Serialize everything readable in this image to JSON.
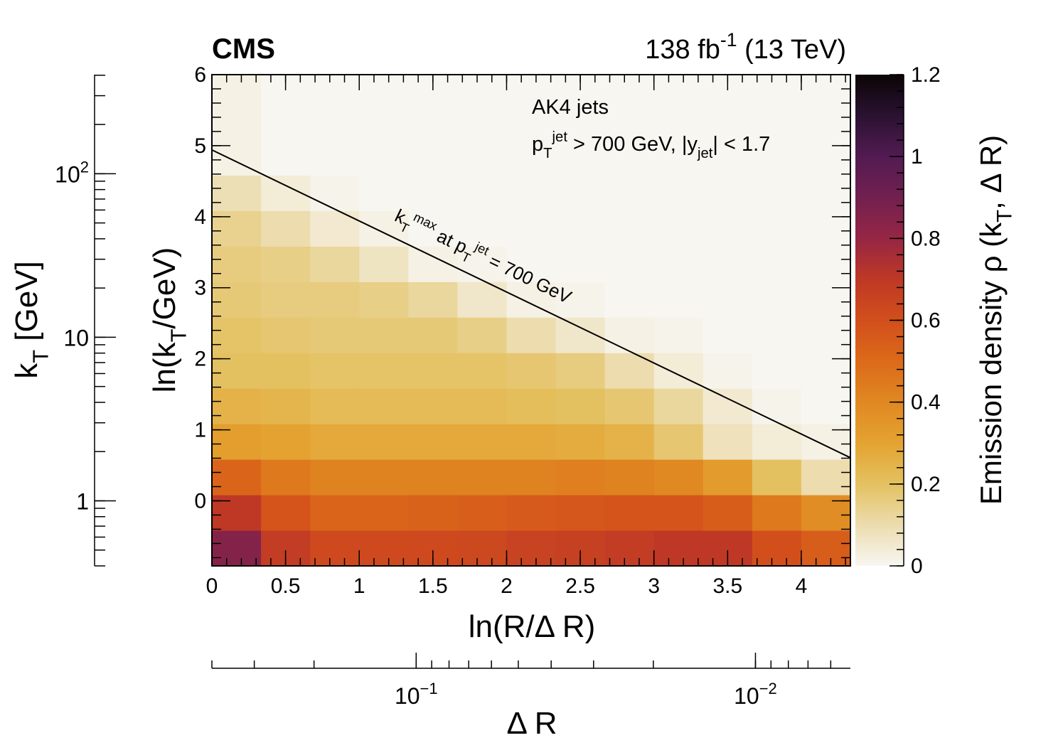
{
  "chart_data": {
    "type": "heatmap",
    "title": "CMS",
    "lumi_label": [
      {
        "text": "138 fb"
      },
      {
        "text": "-1",
        "sup": true
      },
      {
        "text": " (13 TeV)"
      }
    ],
    "annotations": [
      [
        {
          "text": "AK4 jets"
        }
      ],
      [
        {
          "text": "p"
        },
        {
          "text": "T",
          "sub": true
        },
        {
          "text": "jet",
          "sup": true
        },
        {
          "text": " > 700 GeV, |y"
        },
        {
          "text": "jet",
          "sub": true
        },
        {
          "text": "| < 1.7"
        }
      ]
    ],
    "line": {
      "label": [
        {
          "text": "k"
        },
        {
          "text": "T",
          "sub": true
        },
        {
          "text": "max",
          "sup": true
        },
        {
          "text": " at p"
        },
        {
          "text": "T",
          "sub": true
        },
        {
          "text": "jet",
          "sup": true
        },
        {
          "text": " = 700 GeV"
        }
      ],
      "x": [
        0,
        4.3333
      ],
      "y": [
        4.94,
        0.607
      ],
      "color": "#000000"
    },
    "xlabel": [
      {
        "text": "ln(R/Δ R)"
      }
    ],
    "ylabel": [
      {
        "text": "ln(k"
      },
      {
        "text": "T",
        "sub": true
      },
      {
        "text": "/GeV)"
      }
    ],
    "xlim": [
      0,
      4.3333
    ],
    "xticks": [
      0,
      0.5,
      1,
      1.5,
      2,
      2.5,
      3,
      3.5,
      4
    ],
    "ylim": [
      -0.916,
      6
    ],
    "yticks": [
      0,
      1,
      2,
      3,
      4,
      5,
      6
    ],
    "xbins": [
      0,
      0.3333,
      0.6667,
      1,
      1.3333,
      1.6667,
      2,
      2.3333,
      2.6667,
      3,
      3.3333,
      3.6667,
      4,
      4.3333
    ],
    "ybins": [
      -0.916,
      -0.416,
      0.084,
      0.584,
      1.084,
      1.584,
      2.084,
      2.584,
      3.084,
      3.584,
      4.084,
      4.584,
      5.084,
      5.584,
      6.084
    ],
    "z": [
      [
        0.85,
        0.68,
        0.62,
        0.62,
        0.62,
        0.63,
        0.65,
        0.66,
        0.68,
        0.7,
        0.7,
        0.6,
        0.55
      ],
      [
        0.7,
        0.58,
        0.52,
        0.52,
        0.53,
        0.54,
        0.56,
        0.57,
        0.58,
        0.58,
        0.55,
        0.45,
        0.38
      ],
      [
        0.52,
        0.45,
        0.42,
        0.42,
        0.42,
        0.42,
        0.42,
        0.43,
        0.42,
        0.4,
        0.33,
        0.2,
        0.1
      ],
      [
        0.32,
        0.3,
        0.28,
        0.28,
        0.28,
        0.28,
        0.28,
        0.27,
        0.25,
        0.18,
        0.08,
        0.04,
        0.02
      ],
      [
        0.25,
        0.24,
        0.22,
        0.22,
        0.22,
        0.22,
        0.21,
        0.2,
        0.18,
        0.12,
        0.05,
        0.01,
        0
      ],
      [
        0.2,
        0.2,
        0.19,
        0.19,
        0.19,
        0.19,
        0.18,
        0.16,
        0.1,
        0.04,
        0.01,
        0,
        0
      ],
      [
        0.19,
        0.18,
        0.17,
        0.17,
        0.17,
        0.15,
        0.1,
        0.06,
        0.02,
        0.01,
        0,
        0,
        0
      ],
      [
        0.17,
        0.16,
        0.16,
        0.15,
        0.12,
        0.06,
        0.02,
        0.01,
        0,
        0,
        0,
        0,
        0
      ],
      [
        0.16,
        0.15,
        0.12,
        0.07,
        0.02,
        0.01,
        0,
        0,
        0,
        0,
        0,
        0,
        0
      ],
      [
        0.14,
        0.1,
        0.05,
        0.02,
        0,
        0,
        0,
        0,
        0,
        0,
        0,
        0,
        0
      ],
      [
        0.09,
        0.04,
        0.01,
        0,
        0,
        0,
        0,
        0,
        0,
        0,
        0,
        0,
        0
      ],
      [
        0.02,
        0,
        0,
        0,
        0,
        0,
        0,
        0,
        0,
        0,
        0,
        0,
        0
      ],
      [
        0.02,
        0,
        0,
        0,
        0,
        0,
        0,
        0,
        0,
        0,
        0,
        0,
        0
      ],
      [
        0.02,
        0,
        0,
        0,
        0,
        0,
        0,
        0,
        0,
        0,
        0,
        0,
        0
      ]
    ],
    "zlim": [
      0,
      1.2
    ],
    "zticks": [
      0,
      0.2,
      0.4,
      0.6,
      0.8,
      1,
      1.2
    ],
    "zlabel": [
      {
        "text": "Emission density ρ (k"
      },
      {
        "text": "T",
        "sub": true
      },
      {
        "text": ", Δ R)"
      }
    ],
    "colorscale": [
      "#f7f6f1",
      "#ecdcae",
      "#e4c160",
      "#e4a331",
      "#e08822",
      "#dc6a1a",
      "#d24f1c",
      "#be3825",
      "#962645",
      "#72204f",
      "#521b52",
      "#2a1231",
      "#0b0506"
    ],
    "y_outer": {
      "label": [
        {
          "text": "k"
        },
        {
          "text": "T",
          "sub": true
        },
        {
          "text": " [GeV]"
        }
      ],
      "lim": [
        0.4,
        403.4
      ],
      "log": true,
      "ticks": [
        1,
        10,
        {
          "value": 100,
          "label": "10",
          "exponent": "2"
        }
      ]
    },
    "x_outer": {
      "label": [
        {
          "text": "Δ R"
        }
      ],
      "lim": [
        0.4,
        0.00525
      ],
      "log": true,
      "ticks": [
        {
          "value": 0.1,
          "label": "10",
          "exponent": "−1"
        },
        {
          "value": 0.01,
          "label": "10",
          "exponent": "−2"
        }
      ]
    }
  }
}
